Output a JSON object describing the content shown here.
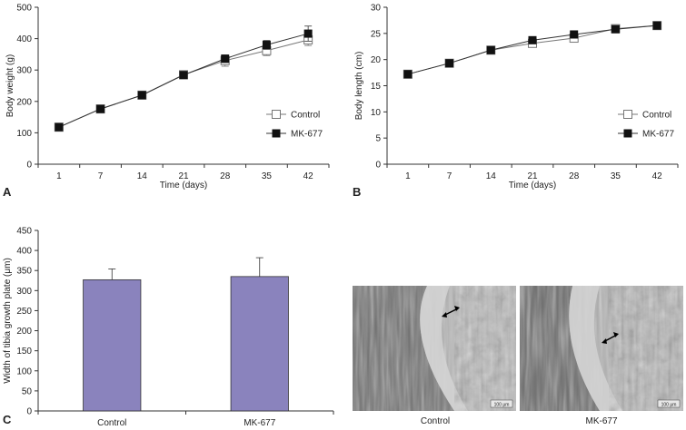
{
  "colors": {
    "control_line": "#777777",
    "mk_line": "#333333",
    "mk_marker": "#111111",
    "bar_fill": "#8a83bd",
    "bar_stroke": "#333333",
    "axis": "#333333"
  },
  "chart_data": [
    {
      "id": "A",
      "panel_label": "A",
      "type": "line",
      "x": [
        "1",
        "7",
        "14",
        "21",
        "28",
        "35",
        "42"
      ],
      "series": [
        {
          "name": "Control",
          "marker": "open-square",
          "values": [
            118,
            176,
            220,
            285,
            330,
            362,
            396
          ],
          "errors": [
            4,
            5,
            6,
            7,
            18,
            16,
            18
          ]
        },
        {
          "name": "MK-677",
          "marker": "filled-square",
          "values": [
            118,
            176,
            220,
            284,
            336,
            380,
            416
          ],
          "errors": [
            4,
            5,
            6,
            7,
            12,
            14,
            24
          ]
        }
      ],
      "xlabel": "Time (days)",
      "ylabel": "Body weight (g)",
      "ylim": [
        0,
        500
      ],
      "yticks": [
        "0",
        "100",
        "200",
        "300",
        "400",
        "500"
      ],
      "legend": "bottom-right"
    },
    {
      "id": "B",
      "panel_label": "B",
      "type": "line",
      "x": [
        "1",
        "7",
        "14",
        "21",
        "28",
        "35",
        "42"
      ],
      "series": [
        {
          "name": "Control",
          "marker": "open-square",
          "values": [
            17.2,
            19.3,
            21.8,
            23.1,
            24.1,
            25.9,
            26.5
          ],
          "errors": [
            0.3,
            0.3,
            0.3,
            0.4,
            0.5,
            0.3,
            0.3
          ]
        },
        {
          "name": "MK-677",
          "marker": "filled-square",
          "values": [
            17.2,
            19.3,
            21.8,
            23.7,
            24.8,
            25.8,
            26.5
          ],
          "errors": [
            0.3,
            0.3,
            0.3,
            0.4,
            0.4,
            0.3,
            0.3
          ]
        }
      ],
      "xlabel": "Time (days)",
      "ylabel": "Body length (cm)",
      "ylim": [
        0,
        30
      ],
      "yticks": [
        "0",
        "5",
        "10",
        "15",
        "20",
        "25",
        "30"
      ],
      "legend": "bottom-right"
    },
    {
      "id": "C",
      "panel_label": "C",
      "type": "bar",
      "categories": [
        "Control",
        "MK-677"
      ],
      "values": [
        327,
        335
      ],
      "errors": [
        27,
        47
      ],
      "ylabel": "Width of tibia growth plate (μm)",
      "ylim": [
        0,
        450
      ],
      "yticks": [
        "0",
        "50",
        "100",
        "150",
        "200",
        "250",
        "300",
        "350",
        "400",
        "450"
      ]
    }
  ],
  "micrographs": {
    "labels": [
      "Control",
      "MK-677"
    ],
    "scale_bar_text": "100 μm"
  }
}
